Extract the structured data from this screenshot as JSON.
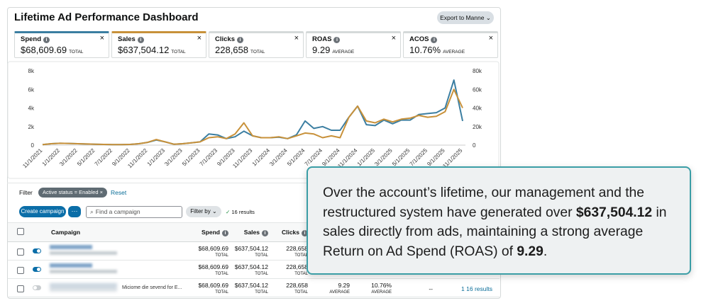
{
  "header": {
    "title": "Lifetime Ad Performance Dashboard",
    "export_button": "Export to Manne"
  },
  "metrics": [
    {
      "name": "Spend",
      "value": "$68,609.69",
      "unit": "TOTAL",
      "color": "#3b7ea1"
    },
    {
      "name": "Sales",
      "value": "$637,504.12",
      "unit": "TOTAL",
      "color": "#c8913a"
    },
    {
      "name": "Clicks",
      "value": "228,658",
      "unit": "TOTAL"
    },
    {
      "name": "ROAS",
      "value": "9.29",
      "unit": "AVERAGE"
    },
    {
      "name": "ACOS",
      "value": "10.76%",
      "unit": "AVERAGE"
    }
  ],
  "chart_data": {
    "type": "line",
    "categories": [
      "11/1/2021",
      null,
      "1/1/2022",
      null,
      "3/1/2022",
      null,
      "5/1/2022",
      null,
      "7/1/2022",
      null,
      "9/1/2022",
      null,
      "11/1/2022",
      null,
      "1/1/2023",
      null,
      "3/1/2023",
      null,
      "5/1/2023",
      null,
      "7/1/2023",
      null,
      "9/1/2023",
      null,
      "11/1/2023",
      null,
      "1/1/2024",
      null,
      "3/1/2024",
      null,
      "5/1/2024",
      null,
      "7/1/2024",
      null,
      "9/1/2024",
      null,
      "11/1/2024",
      null,
      "1/1/2025",
      null,
      "3/1/2025",
      null,
      "5/1/2025",
      null,
      "7/1/2025",
      null,
      "9/1/2025",
      null,
      "11/1/2025"
    ],
    "series": [
      {
        "color": "#3b7ea1",
        "axis": "y",
        "values": [
          50,
          150,
          200,
          180,
          150,
          120,
          100,
          80,
          60,
          50,
          80,
          150,
          300,
          550,
          350,
          100,
          150,
          250,
          350,
          1200,
          1100,
          700,
          900,
          1500,
          1000,
          800,
          800,
          850,
          700,
          1100,
          2600,
          1800,
          2000,
          1600,
          1600,
          3000,
          4200,
          2200,
          2100,
          2700,
          2300,
          2700,
          2700,
          3300,
          3400,
          3500,
          4000,
          7000,
          2600
        ]
      },
      {
        "color": "#c8913a",
        "axis": "y2",
        "values": [
          500,
          1500,
          2000,
          1800,
          1500,
          1200,
          1000,
          800,
          600,
          500,
          800,
          1500,
          3000,
          6000,
          3500,
          1000,
          1500,
          2500,
          3500,
          8000,
          9000,
          7000,
          12000,
          24000,
          10000,
          8000,
          8000,
          9000,
          7000,
          10000,
          13000,
          12000,
          8000,
          10000,
          8000,
          30000,
          42000,
          26000,
          24000,
          28000,
          25000,
          28000,
          29000,
          32000,
          30000,
          31000,
          36000,
          60000,
          40000
        ]
      }
    ],
    "ylim": [
      0,
      8000
    ],
    "yticks": [
      0,
      {
        "value": 2000,
        "label": "2k"
      },
      {
        "value": 4000,
        "label": "4k"
      },
      {
        "value": 6000,
        "label": "6k"
      },
      {
        "value": 8000,
        "label": "8k"
      }
    ],
    "y2lim": [
      0,
      80000
    ],
    "y2ticks": [
      0,
      {
        "value": 20000,
        "label": "20k"
      },
      {
        "value": 40000,
        "label": "40k"
      },
      {
        "value": 60000,
        "label": "60k"
      },
      {
        "value": 80000,
        "label": "80k"
      }
    ]
  },
  "filter": {
    "label": "Filter",
    "chip": "Active status = Enabled",
    "reset": "Reset"
  },
  "toolbar": {
    "create": "Create campaign",
    "more": "···",
    "search_placeholder": "Find a campaign",
    "filter_by": "Filter by",
    "results": "16 results"
  },
  "table": {
    "headers": [
      "Campaign",
      "Spend",
      "Sales",
      "Clicks"
    ],
    "rows": [
      {
        "enabled": true,
        "cells": [
          {
            "value": "$68,609.69",
            "unit": "TOTAL"
          },
          {
            "value": "$637,504.12",
            "unit": "TOTAL"
          },
          {
            "value": "228,658",
            "unit": "TOTAL"
          }
        ]
      },
      {
        "enabled": true,
        "cells": [
          {
            "value": "$68,609.69",
            "unit": "TOTAL"
          },
          {
            "value": "$637,504.12",
            "unit": "TOTAL"
          },
          {
            "value": "228,658",
            "unit": "TOTAL"
          }
        ]
      },
      {
        "enabled": false,
        "campaign": "Miciome die sevend for E...",
        "cells": [
          {
            "value": "$68,609.69",
            "unit": "TOTAL"
          },
          {
            "value": "$637,504.12",
            "unit": "TOTAL"
          },
          {
            "value": "228,658",
            "unit": "TOTAL"
          },
          {
            "value": "9.29",
            "unit": "AVERAGE"
          },
          {
            "value": "10.76%",
            "unit": "AVERAGE"
          },
          {
            "value": "--"
          },
          {
            "value": "1 16 results"
          }
        ]
      }
    ]
  },
  "callout": {
    "parts": [
      {
        "text": "Over the account’s lifetime, our management and the restructured system have generated over "
      },
      {
        "text": "$637,504.12",
        "bold": true
      },
      {
        "text": " in sales directly from ads, maintaining a strong average Return on Ad Spend (ROAS) of "
      },
      {
        "text": "9.29",
        "bold": true
      },
      {
        "text": "."
      }
    ]
  }
}
